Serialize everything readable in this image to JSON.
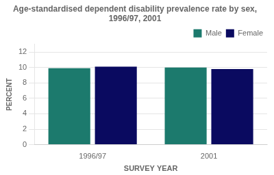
{
  "chart_data": {
    "type": "bar",
    "title": "Age-standardised dependent disability prevalence rate by sex, 1996/97, 2001",
    "xlabel": "SURVEY YEAR",
    "ylabel": "PERCENT",
    "categories": [
      "1996/97",
      "2001"
    ],
    "series": [
      {
        "name": "Male",
        "color": "#1c7a6d",
        "values": [
          9.9,
          10.0
        ]
      },
      {
        "name": "Female",
        "color": "#0a0a60",
        "values": [
          10.1,
          9.8
        ]
      }
    ],
    "ylim": [
      0,
      13
    ],
    "yticks": [
      0,
      2,
      4,
      6,
      8,
      10,
      12
    ],
    "grid": true,
    "legend": "upper right"
  }
}
